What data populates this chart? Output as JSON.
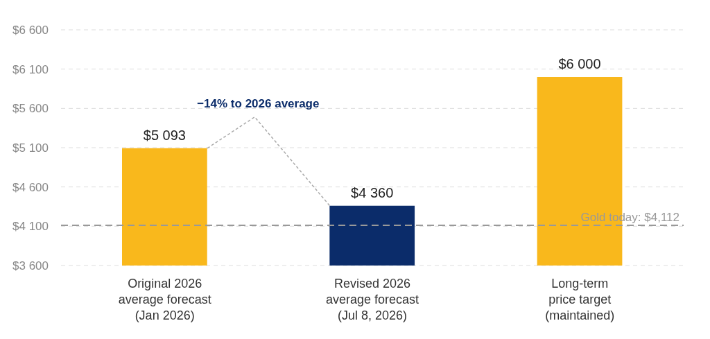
{
  "chart_data": {
    "type": "bar",
    "categories": [
      "Original 2026\naverage forecast\n(Jan 2026)",
      "Revised 2026\naverage forecast\n(Jul 8, 2026)",
      "Long-term\nprice target\n(maintained)"
    ],
    "values": [
      5093,
      4360,
      6000
    ],
    "colors": [
      "#f9b81c",
      "#0b2c6a",
      "#f9b81c"
    ],
    "value_labels": [
      "$5 093",
      "$4 360",
      "$6 000"
    ],
    "ylim": [
      3600,
      6600
    ],
    "yticks": [
      {
        "value": 3600,
        "label": "$3 600"
      },
      {
        "value": 4100,
        "label": "$4 100"
      },
      {
        "value": 4600,
        "label": "$4 600"
      },
      {
        "value": 5100,
        "label": "$5 100"
      },
      {
        "value": 5600,
        "label": "$5 600"
      },
      {
        "value": 6100,
        "label": "$6 100"
      },
      {
        "value": 6600,
        "label": "$6 600"
      }
    ],
    "grid": "y",
    "ref_lines": [
      {
        "axis": "y",
        "value": 4112,
        "label": "Gold today: $4,112",
        "color": "#999999",
        "line_style": "dashed"
      }
    ],
    "annotations": [
      "−14% to 2026 average"
    ]
  }
}
